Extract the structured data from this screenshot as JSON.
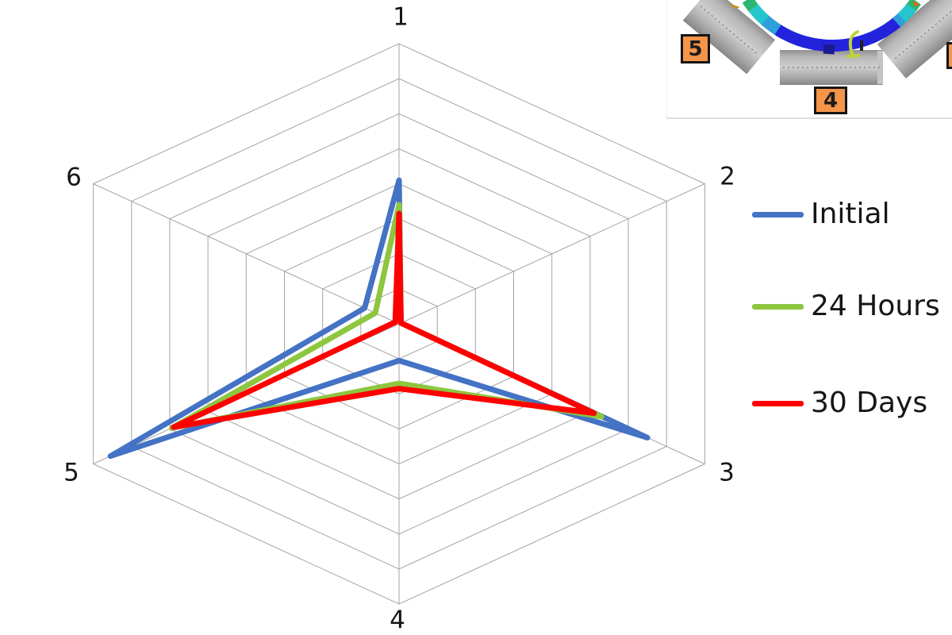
{
  "chart_data": {
    "type": "radar",
    "title": "",
    "categories": [
      "1",
      "2",
      "3",
      "4",
      "5",
      "6"
    ],
    "series": [
      {
        "name": "Initial",
        "color": "#4472C4",
        "values": [
          4.1,
          0.05,
          6.5,
          1.05,
          7.55,
          0.9
        ]
      },
      {
        "name": "24 Hours",
        "color": "#8DC63F",
        "values": [
          3.4,
          0.05,
          5.3,
          1.7,
          5.95,
          0.62
        ]
      },
      {
        "name": "30 Days",
        "color": "#FE0000",
        "values": [
          3.15,
          0.05,
          5.1,
          1.85,
          5.9,
          0.1
        ]
      }
    ],
    "axis_range": [
      0,
      8
    ],
    "rings": 8,
    "grid": true,
    "grid_color": "#A3A3A3",
    "legend_position": "right"
  },
  "inset": {
    "roller_tags": [
      "5",
      "4"
    ],
    "tag_color": "#F5954A",
    "belt_colors": [
      "#2BB673",
      "#25C5CE",
      "#2F9FDC",
      "#2323DC"
    ]
  }
}
